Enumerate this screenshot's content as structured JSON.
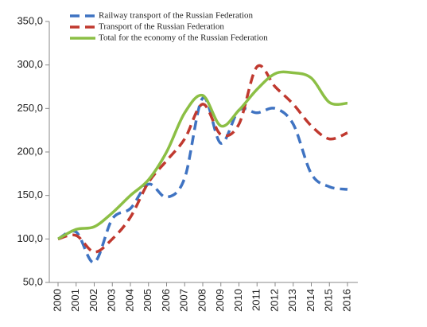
{
  "chart_data": {
    "type": "line",
    "categories": [
      "2000",
      "2001",
      "2002",
      "2003",
      "2004",
      "2005",
      "2006",
      "2007",
      "2008",
      "2009",
      "2010",
      "2011",
      "2012",
      "2013",
      "2014",
      "2015",
      "2016"
    ],
    "series": [
      {
        "name": "Railway transport of the Russian Federation",
        "color": "#3f73c2",
        "dash": true,
        "values": [
          100,
          108,
          73,
          123,
          135,
          163,
          148,
          170,
          262,
          210,
          248,
          245,
          250,
          232,
          175,
          160,
          157
        ]
      },
      {
        "name": "Transport of the Russian Federation",
        "color": "#c0392f",
        "dash": true,
        "values": [
          100,
          104,
          85,
          100,
          125,
          165,
          190,
          215,
          255,
          220,
          232,
          298,
          275,
          255,
          230,
          215,
          222
        ]
      },
      {
        "name": "Total for the economy of the Russian Federation",
        "color": "#8cbf45",
        "dash": false,
        "values": [
          100,
          111,
          114,
          130,
          150,
          168,
          200,
          245,
          265,
          230,
          248,
          272,
          290,
          291,
          285,
          257,
          256
        ]
      }
    ],
    "ylim": [
      50,
      350
    ],
    "yticks": [
      {
        "value": 50,
        "label": "50,0"
      },
      {
        "value": 100,
        "label": "100,0"
      },
      {
        "value": 150,
        "label": "150,0"
      },
      {
        "value": 200,
        "label": "200,0"
      },
      {
        "value": 250,
        "label": "250,0"
      },
      {
        "value": 300,
        "label": "300,0"
      },
      {
        "value": 350,
        "label": "350,0"
      }
    ],
    "legend": "top-left"
  }
}
